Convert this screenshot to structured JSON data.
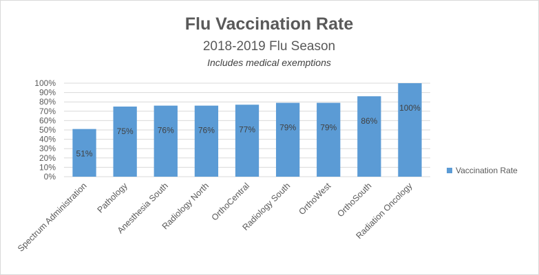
{
  "chart_data": {
    "type": "bar",
    "title": "Flu Vaccination Rate",
    "subtitle": "2018-2019 Flu Season",
    "note": "Includes medical exemptions",
    "categories": [
      "Spectrum Administration",
      "Pathology",
      "Anesthesia South",
      "Radiology North",
      "OrthoCentral",
      "Radiology South",
      "OrthoWest",
      "OrthoSouth",
      "Radiation Oncology"
    ],
    "series": [
      {
        "name": "Vaccination Rate",
        "values": [
          51,
          75,
          76,
          76,
          77,
          79,
          79,
          86,
          100
        ],
        "labels": [
          "51%",
          "75%",
          "76%",
          "76%",
          "77%",
          "79%",
          "79%",
          "86%",
          "100%"
        ],
        "color": "#5b9bd5"
      }
    ],
    "yticks": [
      "0%",
      "10%",
      "20%",
      "30%",
      "40%",
      "50%",
      "60%",
      "70%",
      "80%",
      "90%",
      "100%"
    ],
    "ylim": [
      0,
      100
    ],
    "grid": true,
    "legend_position": "right"
  }
}
